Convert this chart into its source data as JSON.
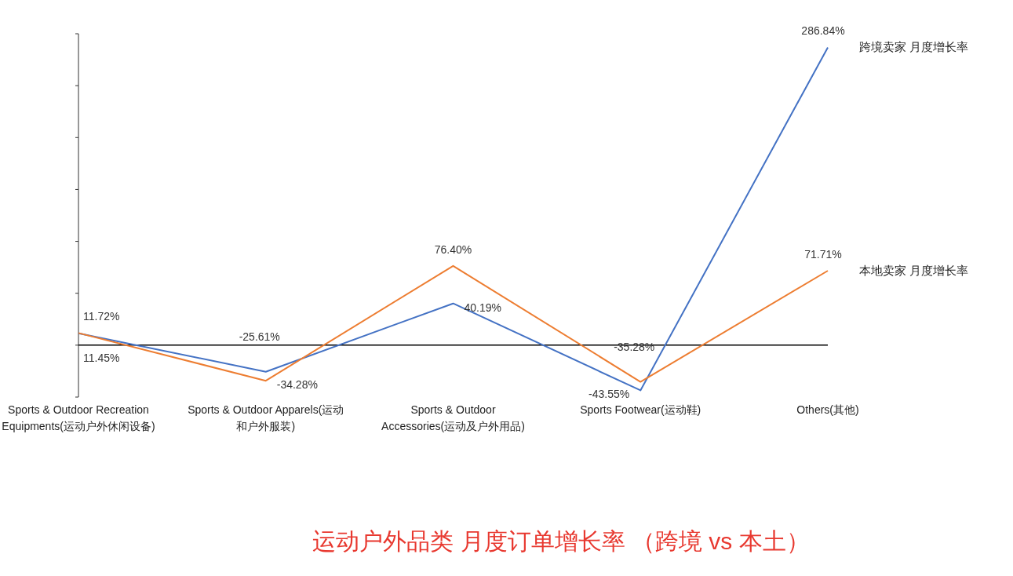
{
  "chart_data": {
    "type": "line",
    "title": "运动户外品类 月度订单增长率 （跨境 vs 本土）",
    "categories": [
      "Sports & Outdoor Recreation Equipments(运动户外休闲设备)",
      "Sports & Outdoor Apparels(运动和户外服装)",
      "Sports & Outdoor Accessories(运动及户外用品)",
      "Sports Footwear(运动鞋)",
      "Others(其他)"
    ],
    "series": [
      {
        "name": "跨境卖家 月度增长率",
        "color": "#4472c4",
        "values": [
          11.45,
          -25.61,
          40.19,
          -43.55,
          286.84
        ],
        "value_labels": [
          "11.45%",
          "-25.61%",
          "40.19%",
          "-43.55%",
          "286.84%"
        ]
      },
      {
        "name": "本地卖家 月度增长率",
        "color": "#ed7d31",
        "values": [
          11.72,
          -34.28,
          76.4,
          -35.28,
          71.71
        ],
        "value_labels": [
          "11.72%",
          "-34.28%",
          "76.40%",
          "-35.28%",
          "71.71%"
        ]
      }
    ],
    "ylim": [
      -50,
      300
    ],
    "yticks": [
      {
        "value": -50,
        "label": null
      },
      {
        "value": 0,
        "label": null
      },
      {
        "value": 50,
        "label": null
      },
      {
        "value": 100,
        "label": null
      },
      {
        "value": 150,
        "label": null
      },
      {
        "value": 200,
        "label": null
      },
      {
        "value": 250,
        "label": null
      },
      {
        "value": 300,
        "label": null
      }
    ],
    "grid": false,
    "marker": "none",
    "line_style": "solid"
  }
}
